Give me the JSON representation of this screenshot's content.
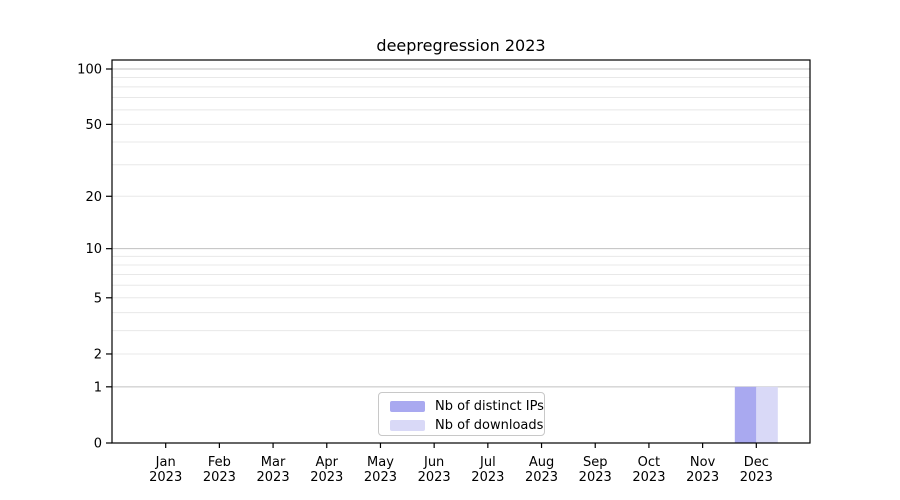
{
  "chart_data": {
    "type": "bar",
    "title": "deepregression 2023",
    "categories": [
      "Jan 2023",
      "Feb 2023",
      "Mar 2023",
      "Apr 2023",
      "May 2023",
      "Jun 2023",
      "Jul 2023",
      "Aug 2023",
      "Sep 2023",
      "Oct 2023",
      "Nov 2023",
      "Dec 2023"
    ],
    "series": [
      {
        "name": "Nb of distinct IPs",
        "color": "#a9a9f0",
        "values": [
          0,
          0,
          0,
          0,
          0,
          0,
          0,
          0,
          0,
          0,
          0,
          1
        ]
      },
      {
        "name": "Nb of downloads",
        "color": "#d9d9f7",
        "values": [
          0,
          0,
          0,
          0,
          0,
          0,
          0,
          0,
          0,
          0,
          0,
          1
        ]
      }
    ],
    "xlabel": "",
    "ylabel": "",
    "yscale": "log10(1+y)",
    "ylim": [
      0,
      113
    ],
    "yticks": [
      0,
      1,
      2,
      5,
      10,
      20,
      50,
      100
    ],
    "y_major_gridlines": [
      1,
      10,
      100
    ],
    "y_minor_gridlines": [
      2,
      3,
      4,
      5,
      6,
      7,
      8,
      9,
      20,
      30,
      40,
      50,
      60,
      70,
      80,
      90
    ],
    "grid": true,
    "legend_position": "lower center",
    "colors": {
      "axis": "#000000",
      "tick_label": "#000000",
      "grid_major": "#c0c0c0",
      "grid_minor": "#e8e8e8",
      "background": "#ffffff"
    }
  }
}
